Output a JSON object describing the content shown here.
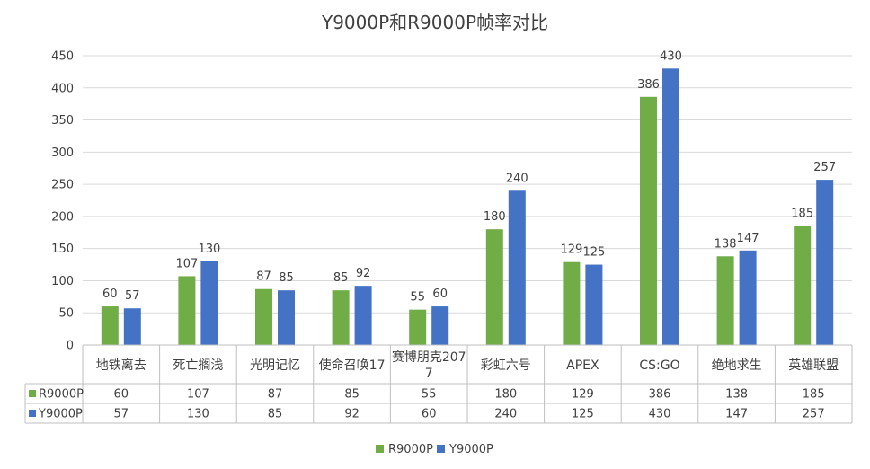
{
  "chart_data": {
    "type": "bar",
    "title": "Y9000P和R9000P帧率对比",
    "categories": [
      "地铁离去",
      "死亡搁浅",
      "光明记忆",
      "使命召唤17",
      "赛博朋克2077",
      "彩虹六号",
      "APEX",
      "CS:GO",
      "绝地求生",
      "英雄联盟"
    ],
    "category_lines": [
      [
        "地铁离去"
      ],
      [
        "死亡搁浅"
      ],
      [
        "光明记忆"
      ],
      [
        "使命召唤17"
      ],
      [
        "赛博朋克207",
        "7"
      ],
      [
        "彩虹六号"
      ],
      [
        "APEX"
      ],
      [
        "CS:GO"
      ],
      [
        "绝地求生"
      ],
      [
        "英雄联盟"
      ]
    ],
    "series": [
      {
        "name": "R9000P",
        "color": "#70ad47",
        "values": [
          60,
          107,
          87,
          85,
          55,
          180,
          129,
          386,
          138,
          185
        ]
      },
      {
        "name": "Y9000P",
        "color": "#4472c4",
        "values": [
          57,
          130,
          85,
          92,
          60,
          240,
          125,
          430,
          147,
          257
        ]
      }
    ],
    "yticks": [
      "0",
      "50",
      "100",
      "150",
      "200",
      "250",
      "300",
      "350",
      "400",
      "450"
    ],
    "ylim": [
      0,
      450
    ],
    "grid": true,
    "data_table": true,
    "legend": "bottom-center"
  }
}
